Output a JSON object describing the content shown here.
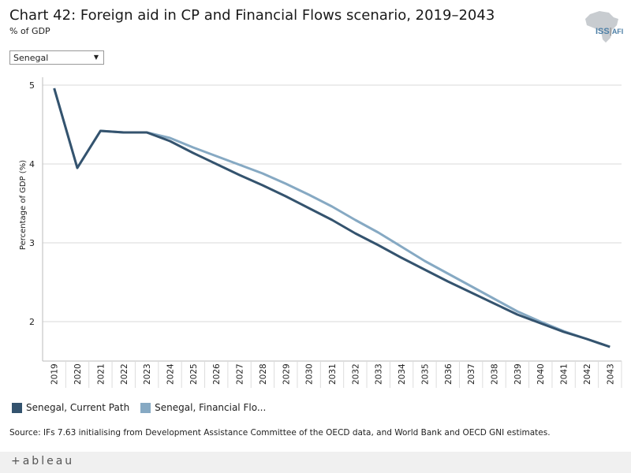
{
  "header": {
    "title": "Chart 42: Foreign aid in CP and Financial Flows scenario, 2019–2043",
    "subtitle": "% of GDP"
  },
  "logo": {
    "text_main": "ISS",
    "text_sep": "|",
    "text_sub": "AFI"
  },
  "filter": {
    "selected": "Senegal"
  },
  "source_note": "Source: IFs 7.63 initialising from Development Assistance Committee of the OECD data, and World Bank and OECD GNI estimates.",
  "footer": {
    "brand": "+ableau"
  },
  "colors": {
    "current_path": "#34536e",
    "financial_flows": "#86a9c3",
    "grid": "#d9d9d9"
  },
  "chart_data": {
    "type": "line",
    "title": "Chart 42: Foreign aid in CP and Financial Flows scenario, 2019–2043",
    "xlabel": "",
    "ylabel": "Percentage of GDP (%)",
    "ylim": [
      1.5,
      5.1
    ],
    "yticks": [
      2,
      3,
      4,
      5
    ],
    "grid": true,
    "legend_position": "bottom-left",
    "x": [
      "2019",
      "2020",
      "2021",
      "2022",
      "2023",
      "2024",
      "2025",
      "2026",
      "2027",
      "2028",
      "2029",
      "2030",
      "2031",
      "2032",
      "2033",
      "2034",
      "2035",
      "2036",
      "2037",
      "2038",
      "2039",
      "2040",
      "2041",
      "2042",
      "2043"
    ],
    "series": [
      {
        "name": "Senegal, Current Path",
        "legend_label": "Senegal, Current Path",
        "color": "#34536e",
        "values": [
          4.96,
          3.95,
          4.42,
          4.4,
          4.4,
          4.29,
          4.14,
          4.0,
          3.86,
          3.73,
          3.59,
          3.44,
          3.29,
          3.12,
          2.97,
          2.81,
          2.66,
          2.51,
          2.37,
          2.23,
          2.09,
          1.98,
          1.87,
          1.78,
          1.68
        ]
      },
      {
        "name": "Senegal, Financial Flows",
        "legend_label": "Senegal, Financial Flo...",
        "color": "#86a9c3",
        "values": [
          4.96,
          3.95,
          4.42,
          4.4,
          4.4,
          4.33,
          4.21,
          4.1,
          3.99,
          3.88,
          3.75,
          3.61,
          3.46,
          3.29,
          3.13,
          2.95,
          2.77,
          2.61,
          2.45,
          2.29,
          2.13,
          2.0,
          1.88,
          1.78,
          1.68
        ]
      }
    ]
  }
}
